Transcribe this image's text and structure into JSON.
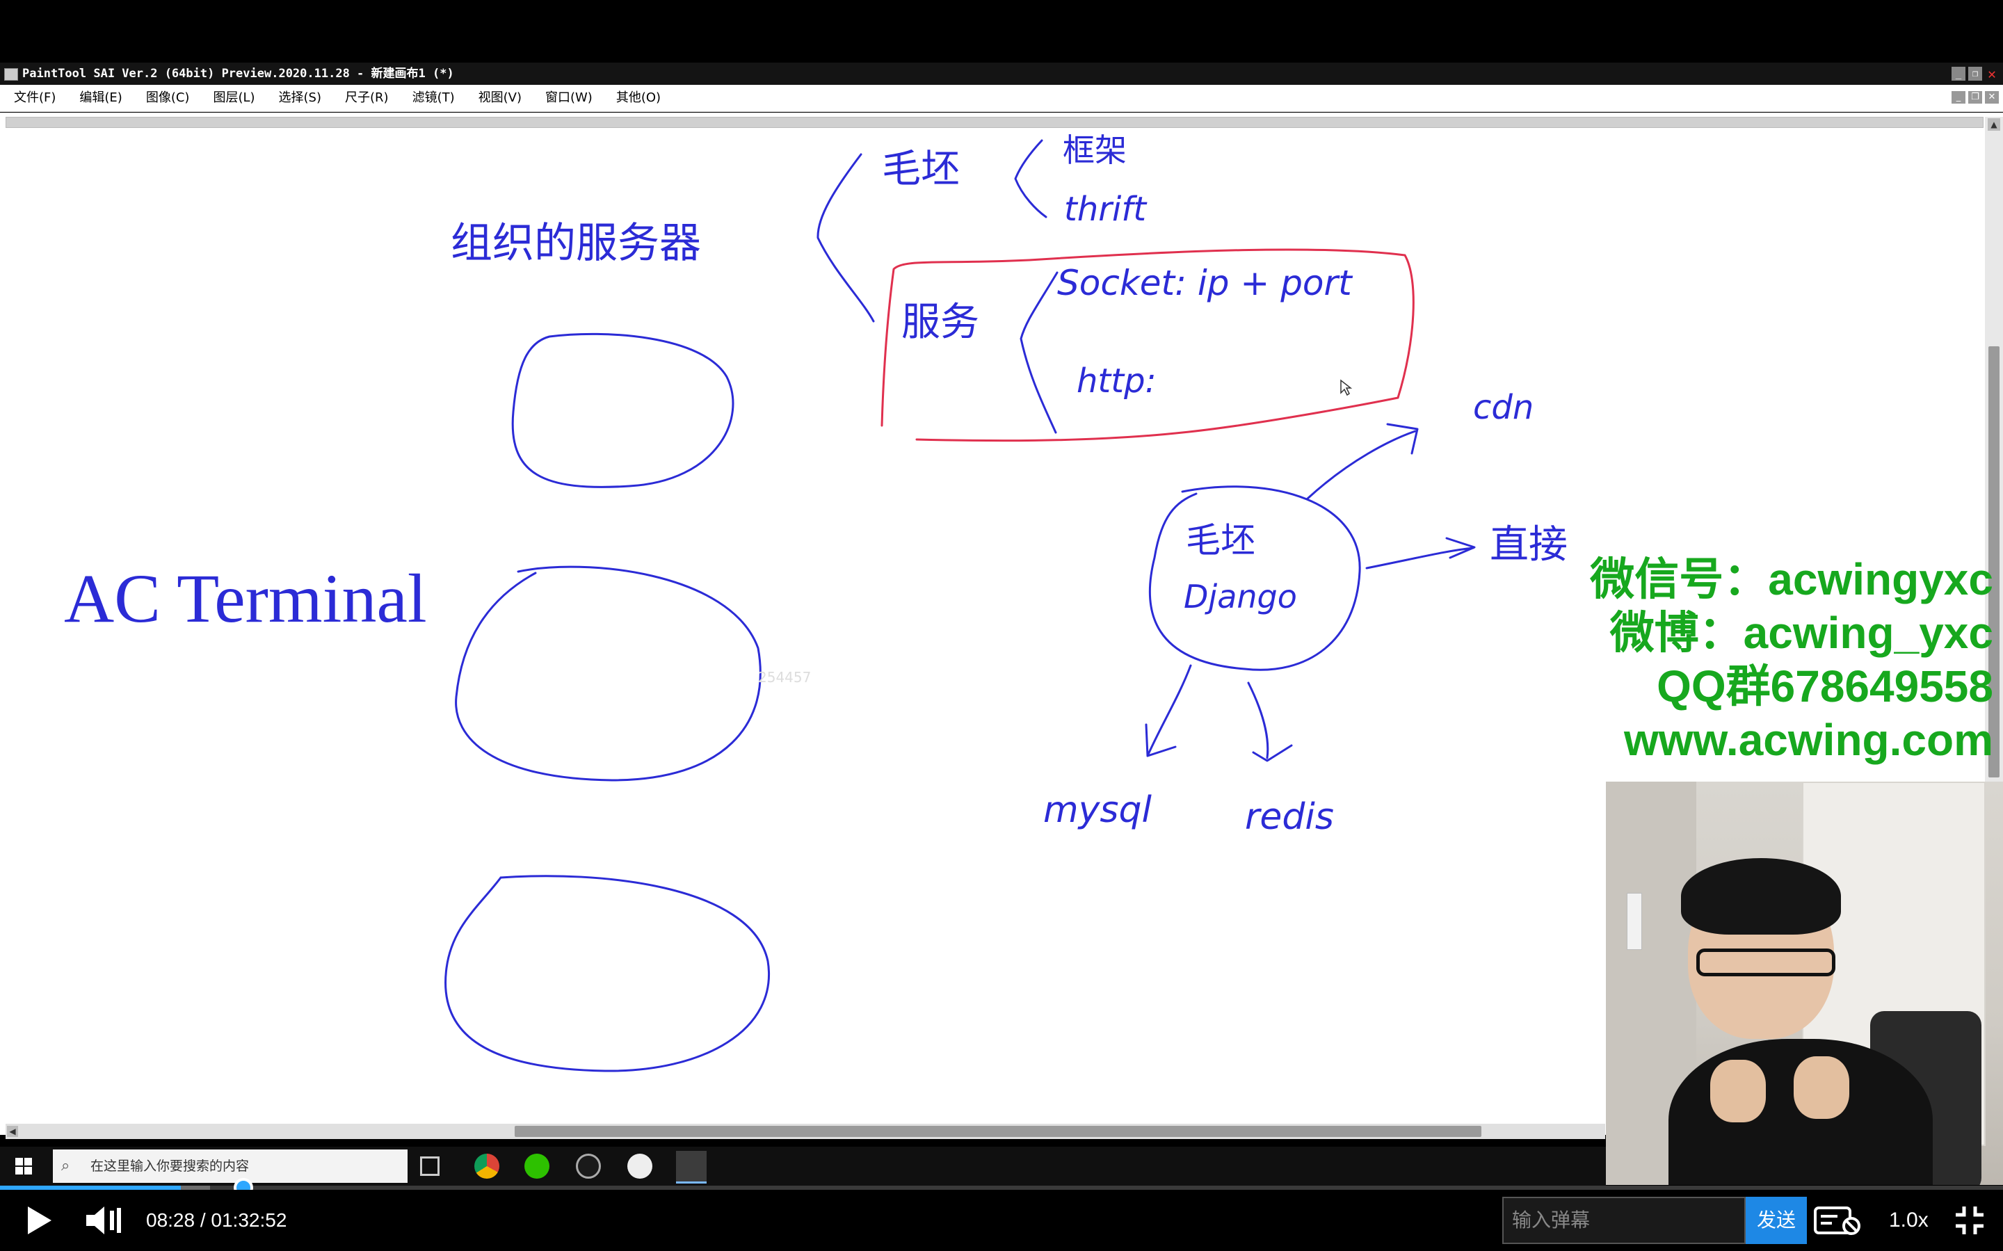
{
  "window": {
    "title": "PaintTool SAI Ver.2 (64bit) Preview.2020.11.28 - 新建画布1 (*)"
  },
  "menu": {
    "items": [
      "文件(F)",
      "编辑(E)",
      "图像(C)",
      "图层(L)",
      "选择(S)",
      "尺子(R)",
      "滤镜(T)",
      "视图(V)",
      "窗口(W)",
      "其他(O)"
    ]
  },
  "canvas": {
    "watermark": "254457",
    "handwriting": {
      "servers_heading": "组织的服务器",
      "ac_terminal": "AC Terminal",
      "frontend": "毛坯",
      "framework": "框架",
      "thrift": "thrift",
      "service": "服务",
      "socket": "Socket: ip + port",
      "http": "http:",
      "cdn": "cdn",
      "backend": "毛坯",
      "django": "Django",
      "direct": "直接",
      "mysql": "mysql",
      "redis": "redis"
    },
    "colors": {
      "ink": "#2b2bd6",
      "red_box": "#e0304e"
    }
  },
  "promo": {
    "wechat": "微信号：acwingyxc",
    "weibo": "微博：acwing_yxc",
    "qq": "QQ群678649558",
    "site": "www.acwing.com",
    "color": "#17a81e"
  },
  "taskbar": {
    "search_placeholder": "在这里输入你要搜索的内容",
    "icons": [
      "task-view-icon",
      "chrome-icon",
      "wechat-icon",
      "obs-icon",
      "recorder-icon",
      "paint-tool-sai-icon"
    ]
  },
  "player": {
    "time": "08:28 / 01:32:52",
    "progress": 0.0903,
    "buffered": 0.105,
    "danmu_placeholder": "输入弹幕",
    "send_label": "发送",
    "speed": "1.0x",
    "accent": "#1e88e5"
  }
}
